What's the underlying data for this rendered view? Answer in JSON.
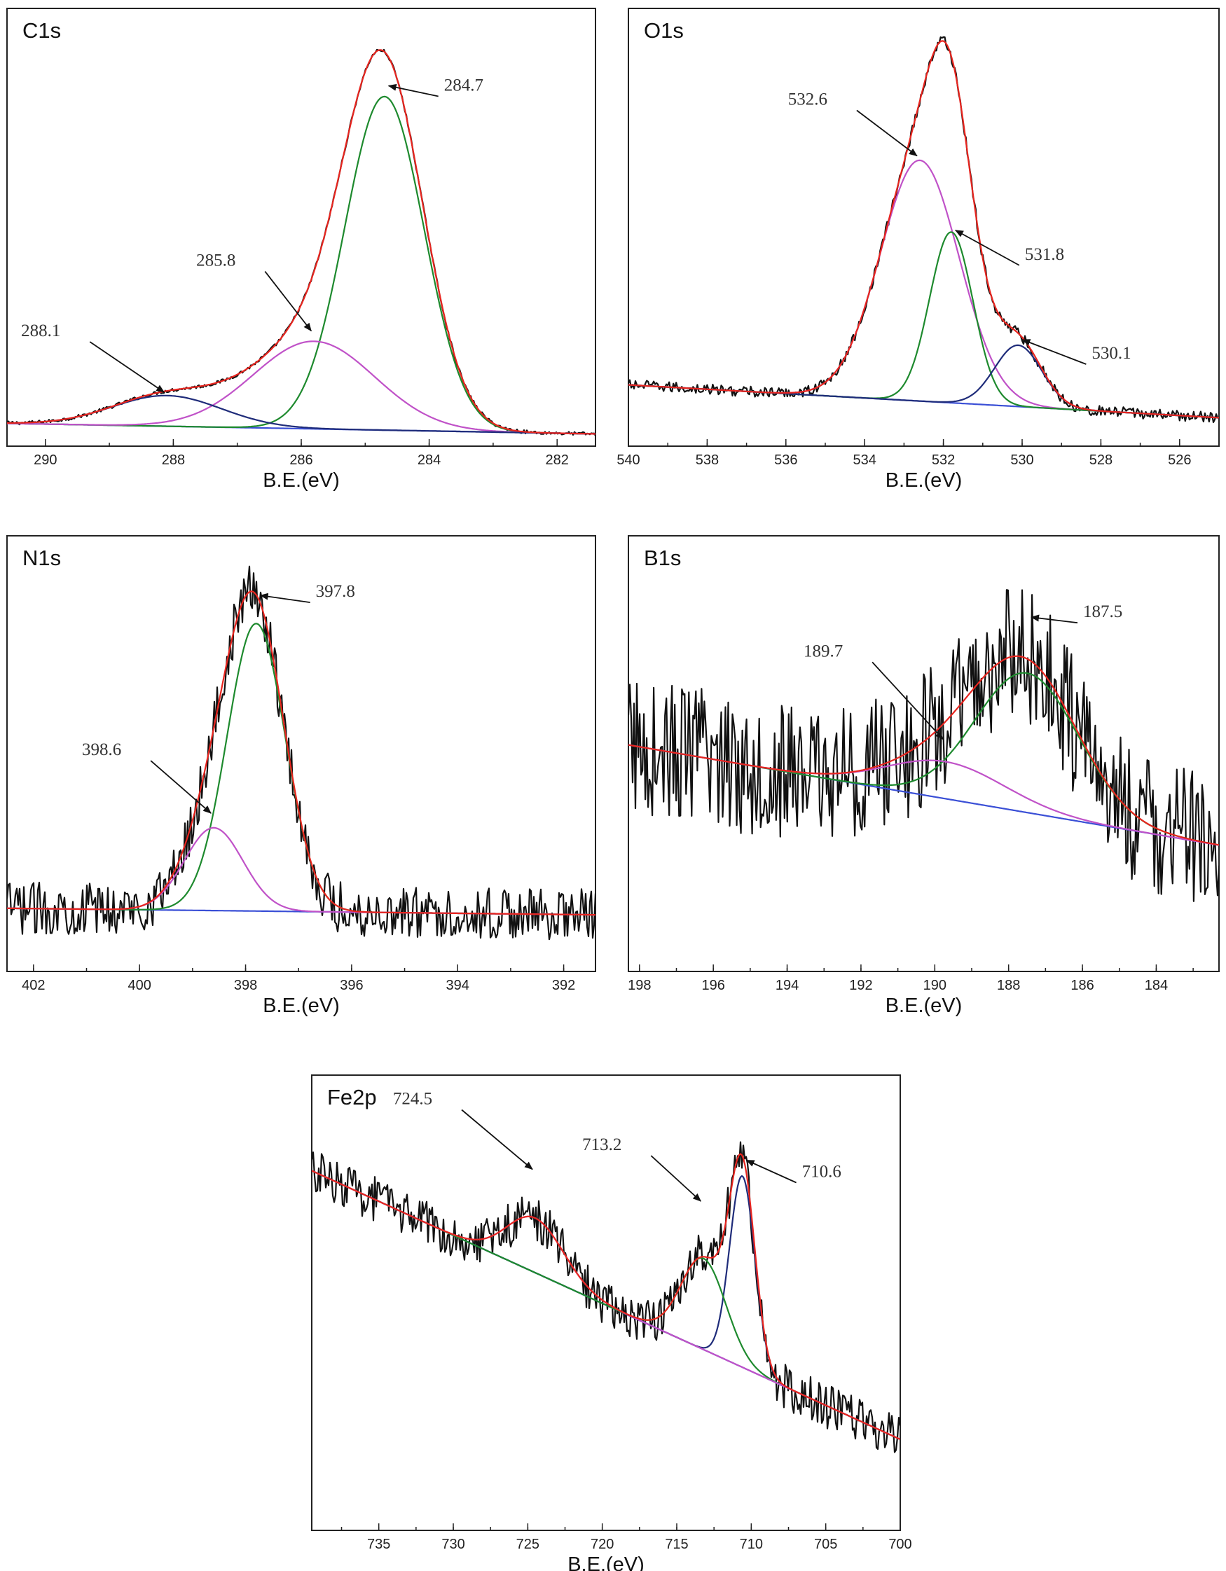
{
  "colors": {
    "raw": "#111111",
    "envelope": "#e8251f",
    "background": "#3a4fd6",
    "green": "#1e8a2e",
    "magenta": "#c052c8",
    "navy": "#1f2c7a"
  },
  "chart_data": [
    {
      "type": "line",
      "title": "C1s",
      "xlabel": "B.E.(eV)",
      "xlim": [
        290.6,
        281.4
      ],
      "ylim": [
        0,
        1.0
      ],
      "xticks": [
        290,
        288,
        286,
        284,
        282
      ],
      "xtick_labels": [
        "290",
        "288",
        "286",
        "284",
        "282"
      ],
      "background_line": [
        [
          290.6,
          0.052
        ],
        [
          281.4,
          0.028
        ]
      ],
      "components": [
        {
          "center": 284.7,
          "amplitude": 0.762,
          "width": 0.62,
          "color": "green"
        },
        {
          "center": 285.8,
          "amplitude": 0.2,
          "width": 0.95,
          "color": "magenta"
        },
        {
          "center": 288.1,
          "amplitude": 0.07,
          "width": 0.85,
          "color": "navy"
        }
      ],
      "noise": 0.004,
      "annotations": [
        {
          "label": "284.7",
          "x": 284.7,
          "y": 0.82
        },
        {
          "label": "285.8",
          "x": 285.8,
          "y": 0.26
        },
        {
          "label": "288.1",
          "x": 288.1,
          "y": 0.12
        }
      ]
    },
    {
      "type": "line",
      "title": "O1s",
      "xlabel": "B.E.(eV)",
      "xlim": [
        540,
        525
      ],
      "ylim": [
        0,
        1.0
      ],
      "xticks": [
        540,
        538,
        536,
        534,
        532,
        530,
        528,
        526
      ],
      "xtick_labels": [
        "540",
        "538",
        "536",
        "534",
        "532",
        "530",
        "528",
        "526"
      ],
      "background_line": [
        [
          540,
          0.14
        ],
        [
          525,
          0.065
        ]
      ],
      "components": [
        {
          "center": 532.6,
          "amplitude": 0.55,
          "width": 1.0,
          "color": "magenta"
        },
        {
          "center": 531.8,
          "amplitude": 0.39,
          "width": 0.55,
          "color": "green"
        },
        {
          "center": 530.1,
          "amplitude": 0.14,
          "width": 0.6,
          "color": "navy"
        }
      ],
      "noise": 0.012,
      "annotations": [
        {
          "label": "532.6",
          "x": 532.6,
          "y": 0.66
        },
        {
          "label": "531.8",
          "x": 531.8,
          "y": 0.49
        },
        {
          "label": "530.1",
          "x": 530.1,
          "y": 0.24
        }
      ]
    },
    {
      "type": "line",
      "title": "N1s",
      "xlabel": "B.E.(eV)",
      "xlim": [
        402.5,
        391.4
      ],
      "ylim": [
        0,
        1.0
      ],
      "xticks": [
        402,
        400,
        398,
        396,
        394,
        392
      ],
      "xtick_labels": [
        "402",
        "400",
        "398",
        "396",
        "394",
        "392"
      ],
      "background_line": [
        [
          402.5,
          0.145
        ],
        [
          391.4,
          0.13
        ]
      ],
      "components": [
        {
          "center": 397.8,
          "amplitude": 0.66,
          "width": 0.55,
          "color": "green"
        },
        {
          "center": 398.6,
          "amplitude": 0.19,
          "width": 0.55,
          "color": "magenta"
        }
      ],
      "noise": 0.06,
      "annotations": [
        {
          "label": "397.8",
          "x": 397.8,
          "y": 0.86
        },
        {
          "label": "398.6",
          "x": 398.6,
          "y": 0.36
        }
      ]
    },
    {
      "type": "line",
      "title": "B1s",
      "xlabel": "B.E.(eV)",
      "xlim": [
        198.3,
        182.3
      ],
      "ylim": [
        0,
        1.0
      ],
      "xticks": [
        198,
        196,
        194,
        192,
        190,
        188,
        186,
        184
      ],
      "xtick_labels": [
        "198",
        "196",
        "194",
        "192",
        "190",
        "188",
        "186",
        "184"
      ],
      "background_line": [
        [
          198.3,
          0.52
        ],
        [
          182.3,
          0.29
        ]
      ],
      "components": [
        {
          "center": 187.5,
          "amplitude": 0.32,
          "width": 1.4,
          "color": "green"
        },
        {
          "center": 189.7,
          "amplitude": 0.085,
          "width": 1.6,
          "color": "magenta"
        }
      ],
      "noise": 0.16,
      "annotations": [
        {
          "label": "187.5",
          "x": 187.5,
          "y": 0.81
        },
        {
          "label": "189.7",
          "x": 189.7,
          "y": 0.53
        }
      ]
    },
    {
      "type": "line",
      "title": "Fe2p",
      "xlabel": "B.E.(eV)",
      "xlim": [
        739.5,
        700
      ],
      "ylim": [
        0,
        1.0
      ],
      "xticks": [
        735,
        730,
        725,
        720,
        715,
        710,
        705,
        700
      ],
      "xtick_labels": [
        "735",
        "730",
        "725",
        "720",
        "715",
        "710",
        "705",
        "700"
      ],
      "background_line": [
        [
          739.5,
          0.79
        ],
        [
          700,
          0.2
        ]
      ],
      "components": [
        {
          "center": 710.6,
          "amplitude": 0.42,
          "width": 0.85,
          "color": "navy"
        },
        {
          "center": 713.2,
          "amplitude": 0.2,
          "width": 1.5,
          "color": "green"
        },
        {
          "center": 724.5,
          "amplitude": 0.12,
          "width": 1.9,
          "color": "magenta"
        }
      ],
      "noise": 0.05,
      "annotations": [
        {
          "label": "724.5",
          "x": 724.5,
          "y": 0.79
        },
        {
          "label": "713.2",
          "x": 713.2,
          "y": 0.72
        },
        {
          "label": "710.6",
          "x": 710.6,
          "y": 0.81
        }
      ]
    }
  ]
}
